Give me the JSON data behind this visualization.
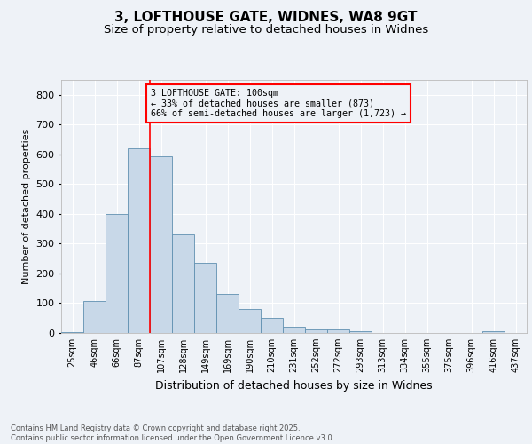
{
  "title1": "3, LOFTHOUSE GATE, WIDNES, WA8 9GT",
  "title2": "Size of property relative to detached houses in Widnes",
  "xlabel": "Distribution of detached houses by size in Widnes",
  "ylabel": "Number of detached properties",
  "bar_labels": [
    "25sqm",
    "46sqm",
    "66sqm",
    "87sqm",
    "107sqm",
    "128sqm",
    "149sqm",
    "169sqm",
    "190sqm",
    "210sqm",
    "231sqm",
    "252sqm",
    "272sqm",
    "293sqm",
    "313sqm",
    "334sqm",
    "355sqm",
    "375sqm",
    "396sqm",
    "416sqm",
    "437sqm"
  ],
  "bar_values": [
    3,
    107,
    400,
    620,
    595,
    330,
    235,
    130,
    80,
    50,
    22,
    13,
    12,
    5,
    1,
    0,
    0,
    0,
    0,
    5,
    0
  ],
  "bar_color": "#c8d8e8",
  "bar_edge_color": "#6090b0",
  "vline_index": 4,
  "vline_color": "red",
  "annotation_text": "3 LOFTHOUSE GATE: 100sqm\n← 33% of detached houses are smaller (873)\n66% of semi-detached houses are larger (1,723) →",
  "annotation_box_color": "red",
  "ylim": [
    0,
    850
  ],
  "yticks": [
    0,
    100,
    200,
    300,
    400,
    500,
    600,
    700,
    800
  ],
  "footer": "Contains HM Land Registry data © Crown copyright and database right 2025.\nContains public sector information licensed under the Open Government Licence v3.0.",
  "bg_color": "#eef2f7",
  "grid_color": "white",
  "title1_fontsize": 11,
  "title2_fontsize": 9.5,
  "footer_fontsize": 6.0
}
